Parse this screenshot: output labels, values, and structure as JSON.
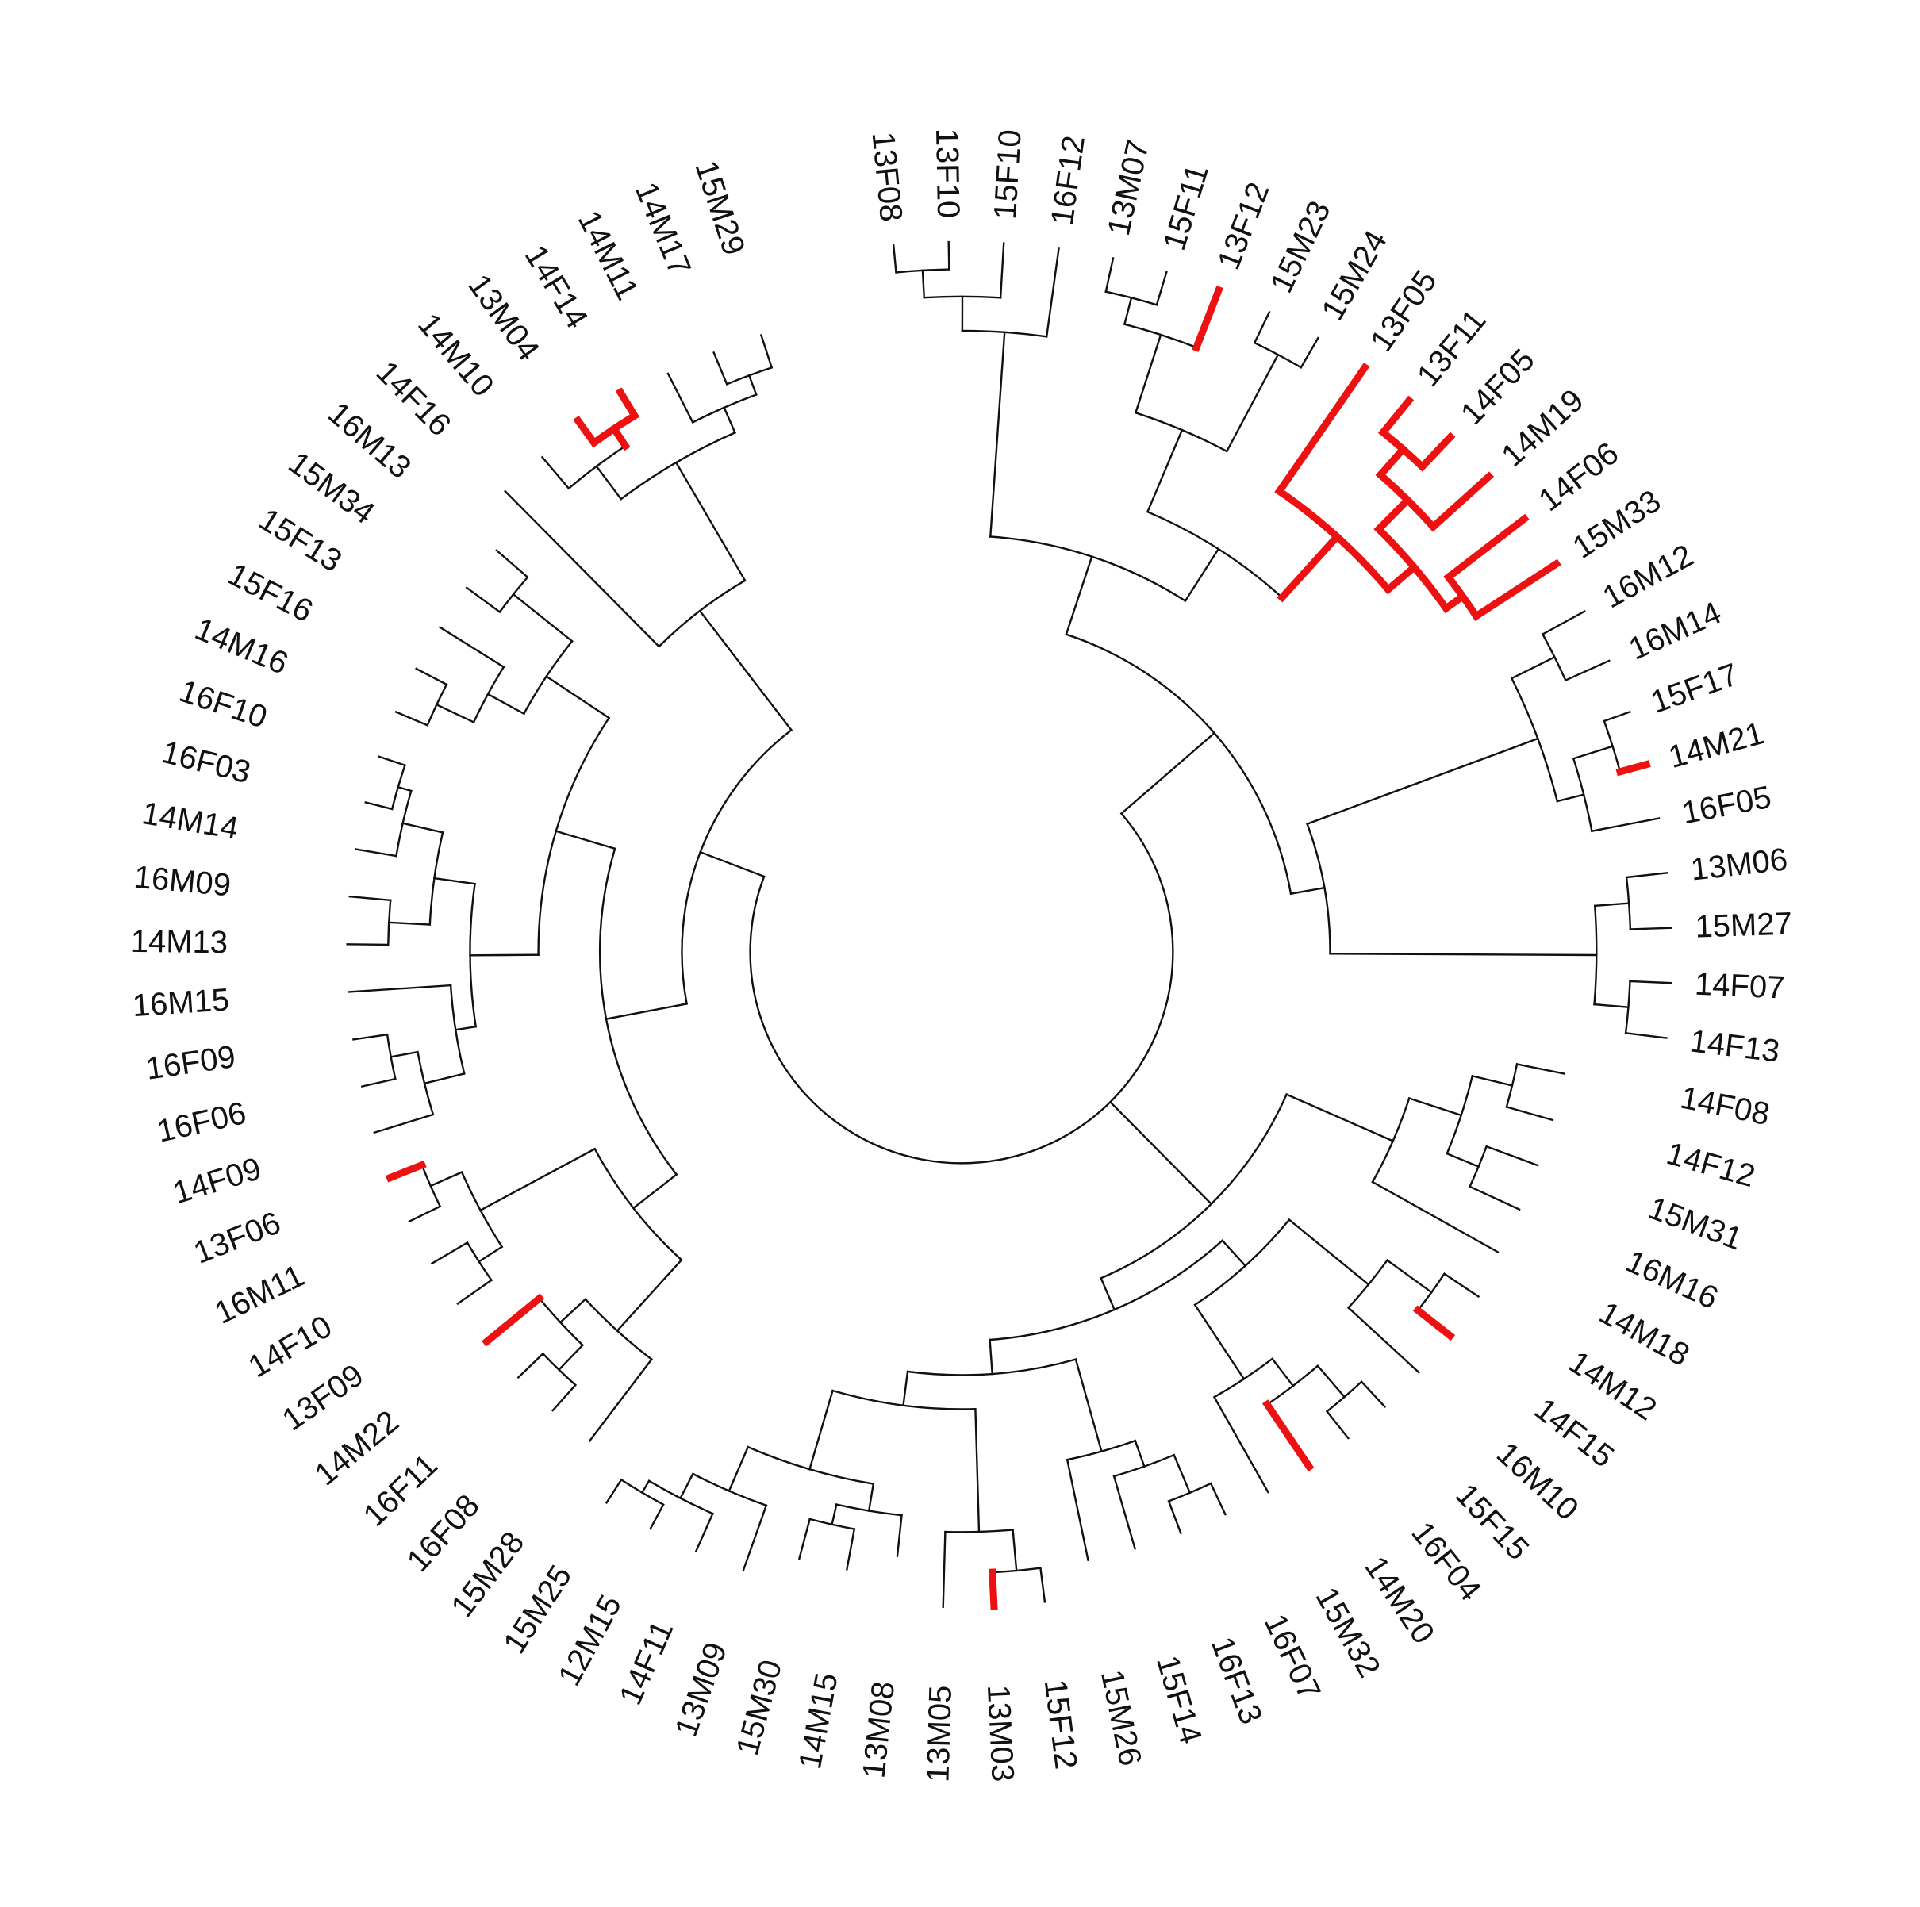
{
  "tree": {
    "type": "fan-dendrogram",
    "colors": {
      "normal": "#111111",
      "highlight": "#ee1111"
    },
    "tips": [
      "13F08",
      "13F10",
      "15F10",
      "16F12",
      "13M07",
      "15F11",
      "13F12",
      "15M23",
      "15M24",
      "13F05",
      "13F11",
      "14F05",
      "14M19",
      "14F06",
      "15M33",
      "16M12",
      "16M14",
      "15F17",
      "14M21",
      "16F05",
      "13M06",
      "15M27",
      "14F07",
      "14F13",
      "14F08",
      "14F12",
      "15M31",
      "16M16",
      "14M18",
      "14M12",
      "14F15",
      "16M10",
      "15F15",
      "16F04",
      "14M20",
      "15M32",
      "15M26",
      "15F14",
      "16F07",
      "16F13",
      "13M05",
      "15F12",
      "13M03",
      "13M08",
      "14M15",
      "15M30",
      "13M09",
      "14F11",
      "12M15",
      "15M25",
      "15M28",
      "16F08",
      "16F11",
      "14M22",
      "13F09",
      "14F10",
      "16M11",
      "13F06",
      "14F09",
      "16F06",
      "16F09",
      "16M15",
      "14M13",
      "16M09",
      "14M14",
      "16F03",
      "16F10",
      "14M16",
      "15F16",
      "15F13",
      "15M34",
      "16M13",
      "14F16",
      "14M10",
      "13M04",
      "14F14",
      "14M11",
      "14M17",
      "15M29"
    ],
    "newick": "((((((13F08:0.04,13F10:0.04):0.04,15F10:0.08):0.05,16F12:0.13):0.3,((((13M07:0.05,15F11:0.05):0.04,13F12:0.09):0.12,(15M23:0.05,15M24:0.05):0.16):0.13,(13F05:0.22,(((13F11:0.06,14F05:0.06):0.05,14M19:0.11):0.06,(14F06:0.14,15M33:0.14):0.03):0.05):0.12):0.09):0.12,(((16M12:0.07,16M14:0.07):0.07,((15F17:0.04,14M21:0.04):0.06,16F05:0.1):0.04):0.36,((13M06:0.06,15M27:0.06):0.05,(14F07:0.06,14F13:0.06):0.05):0.39):0.05):0.18,(((((14F08:0.07,14F12:0.07):0.06,(15M31:0.08,16M16:0.08):0.05):0.08,14M18:0.21):0.17,((((14M12:0.06,14F15:0.06):0.08,16M10:0.14):0.15,(((15F15:0.05,16F04:0.05):0.06,14M20:0.11):0.05,15M32:0.16):0.13):0.05,((((16F07:0.05,16F13:0.05):0.06,15F14:0.11):0.04,15M26:0.15):0.14,(((15F12:0.05,13M03:0.05):0.06,13M05:0.11):0.18,((13M08:0.06,(14M15:0.06,15M30:0.06):0.03):0.04,(13M09:0.1,(14F11:0.06,(12M15:0.04,15M25:0.04):0.02):0.04):0.07):0.12):0.05):0.05):0.05):0.05):0.16,((((15M28:0.15,((16F08:0.05,16F11:0.05):0.05,14M22:0.1):0.05):0.14,((13F09:0.06,14F10:0.06):0.04,(16M11:0.05,13F06:0.05):0.05):0.19):0.08,((((14F09:0.09,(16F06:0.05,16F09:0.05):0.04):0.06,16M15:0.15):0.03,((14M13:0.06,16M09:0.06):0.06,(14M14:0.06,(16F03:0.04,16F10:0.04):0.02):0.06):0.06):0.1,(((14M16:0.05,15F16:0.05):0.06,15F13:0.11):0.06,(15M34:0.06,16M13:0.06):0.11):0.11):0.09):0.12,(14F16:0.32,((14M10:0.06,(13M04:0.04,14F14:0.04):0.03):0.06,(14M11:0.08,(14M17:0.05,15M29:0.05):0.03):0.04):0.2):0.22):0.1):0.04):0.05;",
    "highlight": [
      "13F12",
      "13F05",
      "13F11",
      "14F05",
      "14M19",
      "14F06",
      "15M33",
      "14M21",
      "14F15",
      "14M20",
      "13M03",
      "14M22",
      "13F06",
      "13M04",
      "14F14"
    ]
  }
}
